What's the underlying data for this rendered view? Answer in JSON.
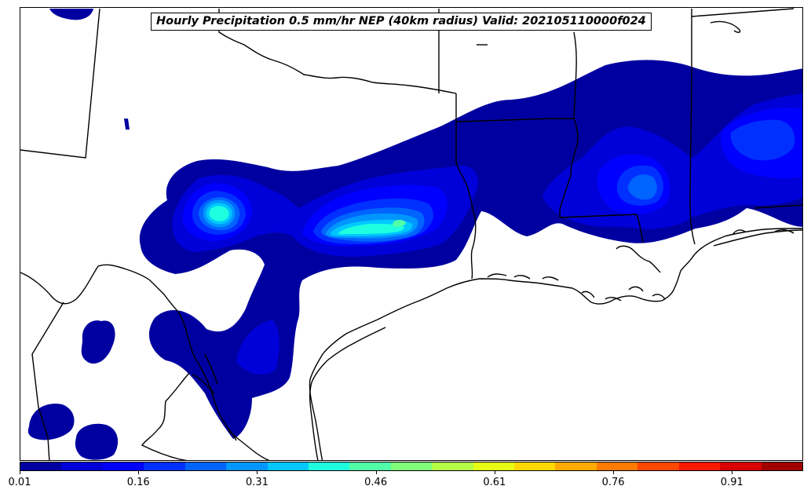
{
  "title": "Hourly Precipitation 0.5 mm/hr NEP (40km radius) Valid: 202105110000f024",
  "colorbar": {
    "colors": [
      "#0000a0",
      "#0000d8",
      "#0000ff",
      "#0030ff",
      "#0064ff",
      "#0096ff",
      "#00c8ff",
      "#1effe0",
      "#50ffa8",
      "#80ff78",
      "#b4ff46",
      "#e6ff14",
      "#ffd800",
      "#ffaa00",
      "#ff7a00",
      "#ff4800",
      "#ff1800",
      "#d80000",
      "#a00000"
    ],
    "tick_labels": [
      "0.01",
      "0.16",
      "0.31",
      "0.46",
      "0.61",
      "0.76",
      "0.91"
    ],
    "min": 0.01,
    "max": 1.0
  },
  "legend_icons": [
    "probability-colorbar"
  ]
}
